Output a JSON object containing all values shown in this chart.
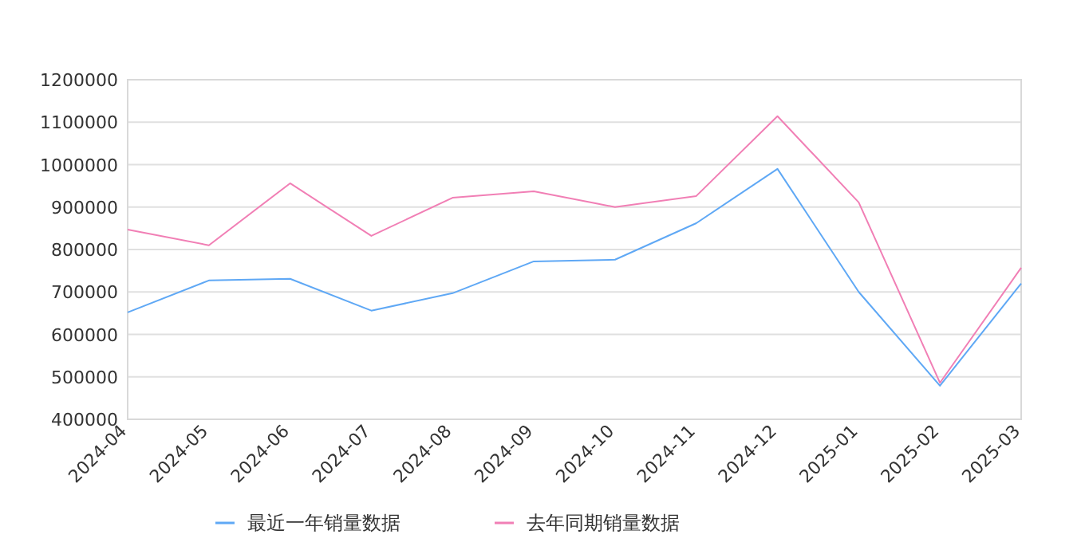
{
  "chart_data": {
    "type": "line",
    "categories": [
      "2024-04",
      "2024-05",
      "2024-06",
      "2024-07",
      "2024-08",
      "2024-09",
      "2024-10",
      "2024-11",
      "2024-12",
      "2025-01",
      "2025-02",
      "2025-03"
    ],
    "series": [
      {
        "name": "最近一年销量数据",
        "color": "#5fa8f5",
        "values": [
          652000,
          727000,
          731000,
          656000,
          697000,
          772000,
          776000,
          862000,
          990000,
          700000,
          479000,
          720000
        ]
      },
      {
        "name": "去年同期销量数据",
        "color": "#f17fb5",
        "values": [
          847000,
          810000,
          956000,
          832000,
          922000,
          937000,
          900000,
          926000,
          1114000,
          911000,
          486000,
          757000
        ]
      }
    ],
    "ylim": [
      400000,
      1200000
    ],
    "yticks": [
      400000,
      500000,
      600000,
      700000,
      800000,
      900000,
      1000000,
      1100000,
      1200000
    ],
    "grid": "y",
    "legend": "bottom"
  }
}
